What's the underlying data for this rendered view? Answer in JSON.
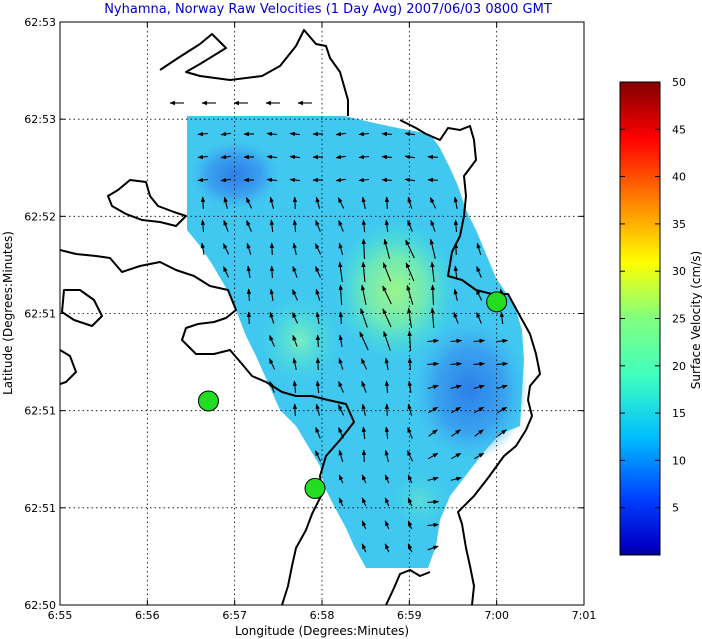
{
  "chart_data": {
    "type": "vector-field",
    "title": "Nyhamna, Norway Raw Velocities (1 Day Avg) 2007/06/03 0800 GMT",
    "xlabel": "Longitude (Degrees:Minutes)",
    "ylabel": "Latitude (Degrees:Minutes)",
    "x_ticks": [
      "6:55",
      "6:56",
      "6:57",
      "6:58",
      "6:59",
      "7:00",
      "7:01"
    ],
    "y_ticks": [
      "62:50",
      "62:51",
      "62:51",
      "62:51",
      "62:52",
      "62:53",
      "62:53"
    ],
    "grid": true,
    "colorbar": {
      "label": "Surface Velocity (cm/s)",
      "ticks": [
        "5",
        "10",
        "15",
        "20",
        "25",
        "30",
        "35",
        "40",
        "45",
        "50"
      ],
      "range": [
        0,
        50
      ],
      "colormap": "jet"
    },
    "stations": [
      {
        "lon_min": 56.7,
        "lat_pos": 0.35
      },
      {
        "lon_min": 57.92,
        "lat_pos": 0.2
      },
      {
        "lon_min": 60.0,
        "lat_pos": 0.52
      }
    ],
    "colors": {
      "title": "#0000cc",
      "station_fill": "#22dd22",
      "coast": "#000000"
    }
  }
}
